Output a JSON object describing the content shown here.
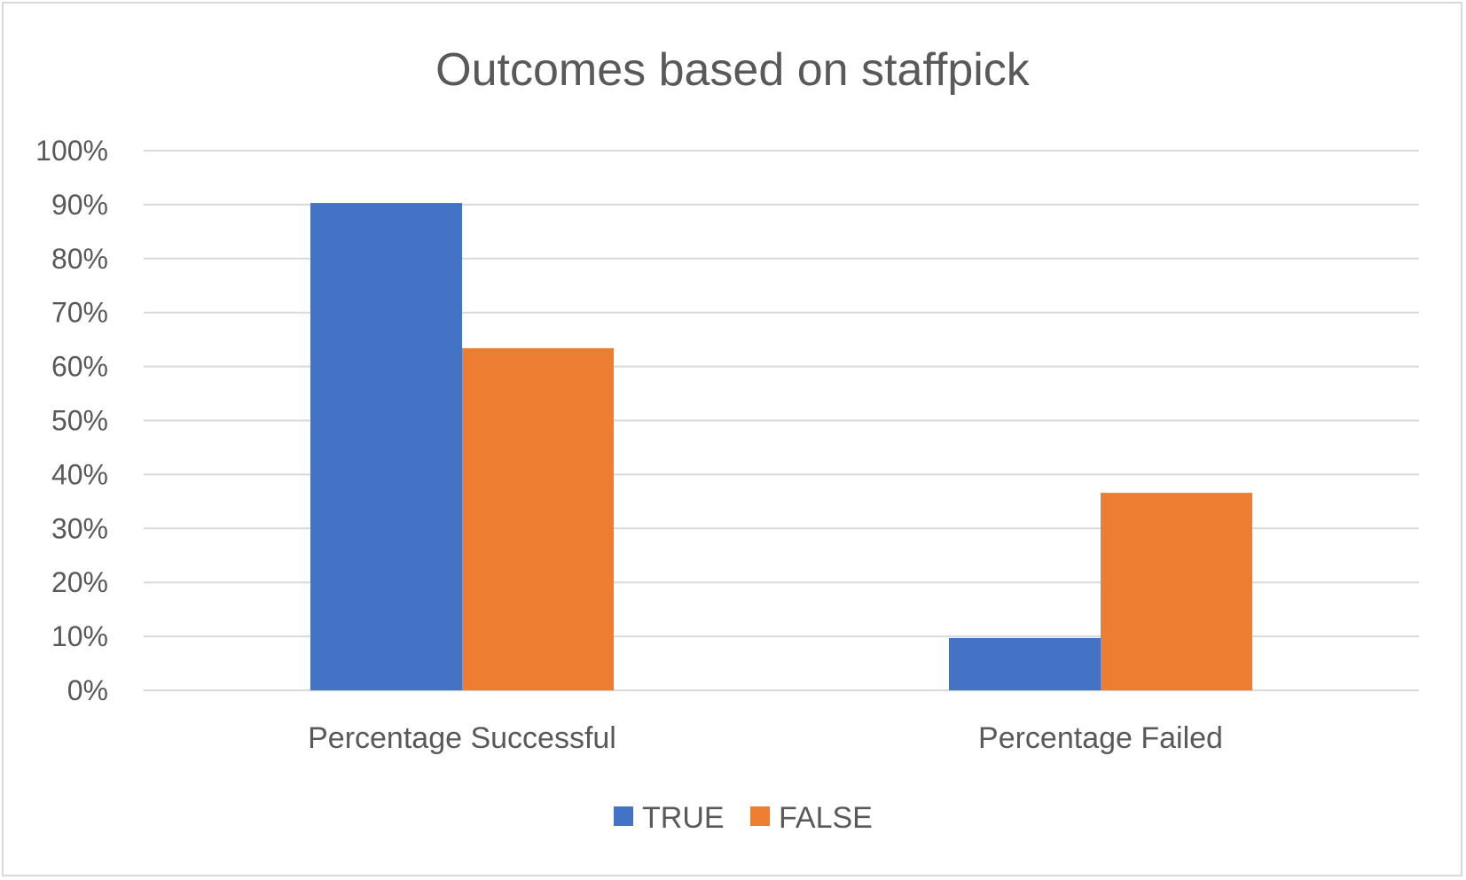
{
  "chart_data": {
    "type": "bar",
    "title": "Outcomes based on staffpick",
    "categories": [
      "Percentage Successful",
      "Percentage Failed"
    ],
    "series": [
      {
        "name": "TRUE",
        "values": [
          90.3,
          9.7
        ],
        "color": "#4472C4"
      },
      {
        "name": "FALSE",
        "values": [
          63.4,
          36.6
        ],
        "color": "#ED7D31"
      }
    ],
    "ylim": [
      0,
      100
    ],
    "yticks": [
      "0%",
      "10%",
      "20%",
      "30%",
      "40%",
      "50%",
      "60%",
      "70%",
      "80%",
      "90%",
      "100%"
    ],
    "grid": true,
    "legend_position": "bottom",
    "gridline_color": "#d9d9d9"
  }
}
